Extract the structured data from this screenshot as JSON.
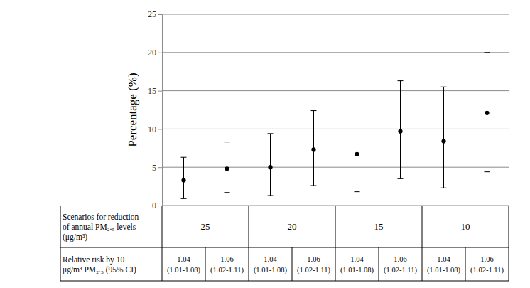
{
  "chart_data": {
    "type": "errorbar",
    "y_label": "Percentage (%)",
    "categories": [
      null,
      null,
      null,
      null,
      null,
      null,
      null,
      null
    ],
    "values": [
      3.3,
      4.8,
      5.0,
      7.3,
      6.7,
      9.7,
      8.4,
      12.1
    ],
    "lower": [
      0.9,
      1.7,
      1.3,
      2.6,
      1.8,
      3.5,
      2.3,
      4.4
    ],
    "upper": [
      6.3,
      8.3,
      9.4,
      12.4,
      12.5,
      16.3,
      15.5,
      20.0
    ],
    "color": "#000000",
    "marker": "circle",
    "ylim": [
      0,
      25
    ],
    "yticks": [
      0,
      5,
      10,
      15,
      20,
      25
    ],
    "grid": true,
    "tick_labels": "y"
  },
  "table": {
    "rows": [
      {
        "label": [
          "Scenarios for reduction",
          "of annual PM₂.₅ levels",
          "(μg/m³)"
        ],
        "cells": [
          "25",
          "20",
          "15",
          "10"
        ]
      },
      {
        "label": [
          "Relative risk by 10",
          "μg/m³ PM₂.₅ (95% CI)"
        ],
        "cells": [
          [
            "1.04",
            "(1.01-1.08)"
          ],
          [
            "1.06",
            "(1.02-1.11)"
          ],
          [
            "1.04",
            "(1.01-1.08)"
          ],
          [
            "1.06",
            "(1.02-1.11)"
          ],
          [
            "1.04",
            "(1.01-1.08)"
          ],
          [
            "1.06",
            "(1.02-1.11)"
          ],
          [
            "1.04",
            "(1.01-1.08)"
          ],
          [
            "1.06",
            "(1.02-1.11)"
          ]
        ]
      }
    ]
  }
}
